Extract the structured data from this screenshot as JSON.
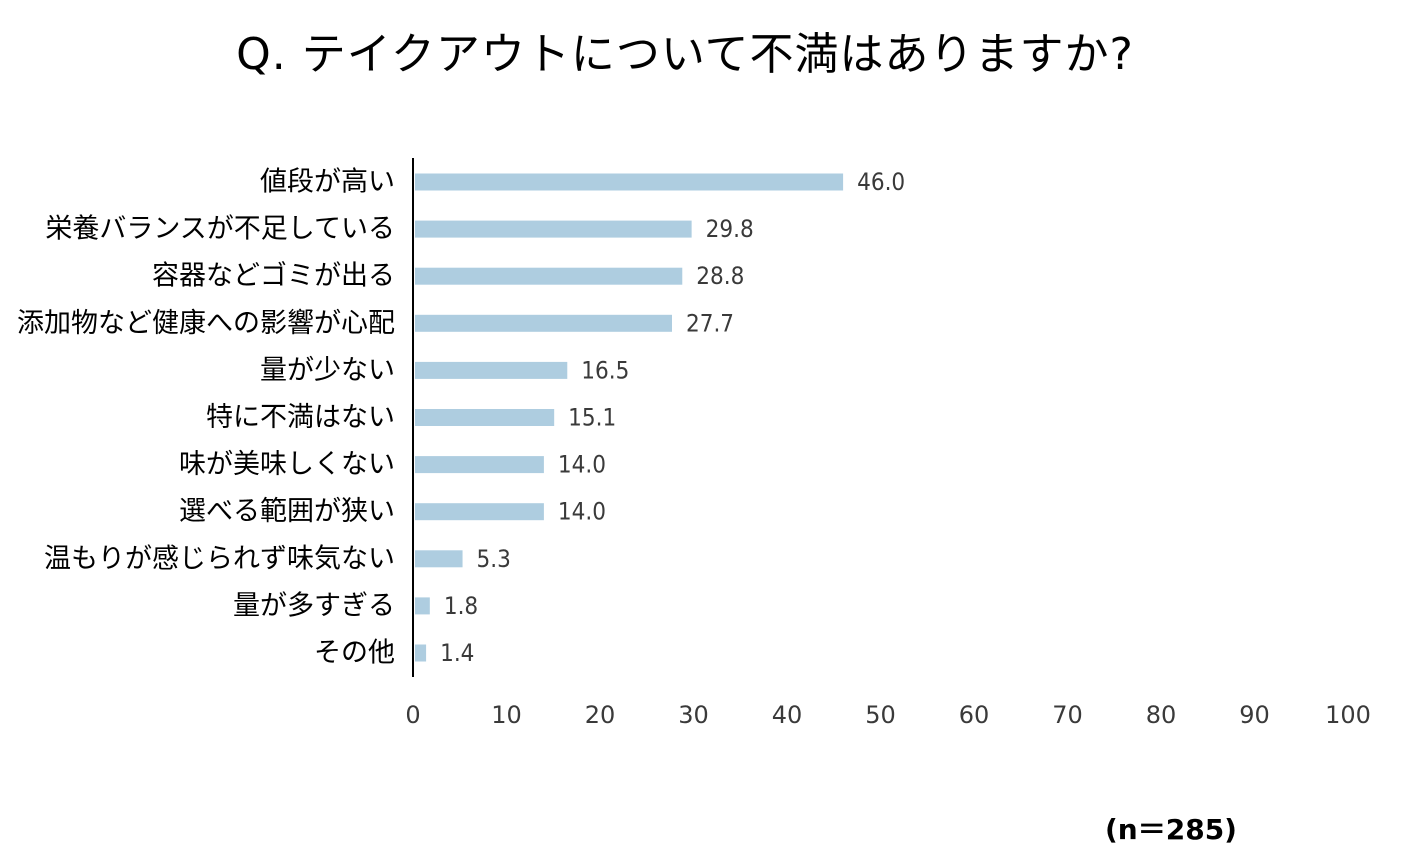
{
  "chart_data": {
    "type": "bar",
    "orientation": "horizontal",
    "title": "Q. テイクアウトについて不満はありますか?",
    "categories": [
      "値段が高い",
      "栄養バランスが不足している",
      "容器などゴミが出る",
      "添加物など健康への影響が心配",
      "量が少ない",
      "特に不満はない",
      "味が美味しくない",
      "選べる範囲が狭い",
      "温もりが感じられず味気ない",
      "量が多すぎる",
      "その他"
    ],
    "values": [
      46.0,
      29.8,
      28.8,
      27.7,
      16.5,
      15.1,
      14.0,
      14.0,
      5.3,
      1.8,
      1.4
    ],
    "value_labels": [
      "46.0",
      "29.8",
      "28.8",
      "27.7",
      "16.5",
      "15.1",
      "14.0",
      "14.0",
      "5.3",
      "1.8",
      "1.4"
    ],
    "xlim": [
      0,
      100
    ],
    "xticks": [
      "0",
      "10",
      "20",
      "30",
      "40",
      "50",
      "60",
      "70",
      "80",
      "90",
      "100"
    ],
    "grid": false,
    "legend": "none",
    "bar_color": "#aecde0",
    "note": "(n＝285)"
  }
}
